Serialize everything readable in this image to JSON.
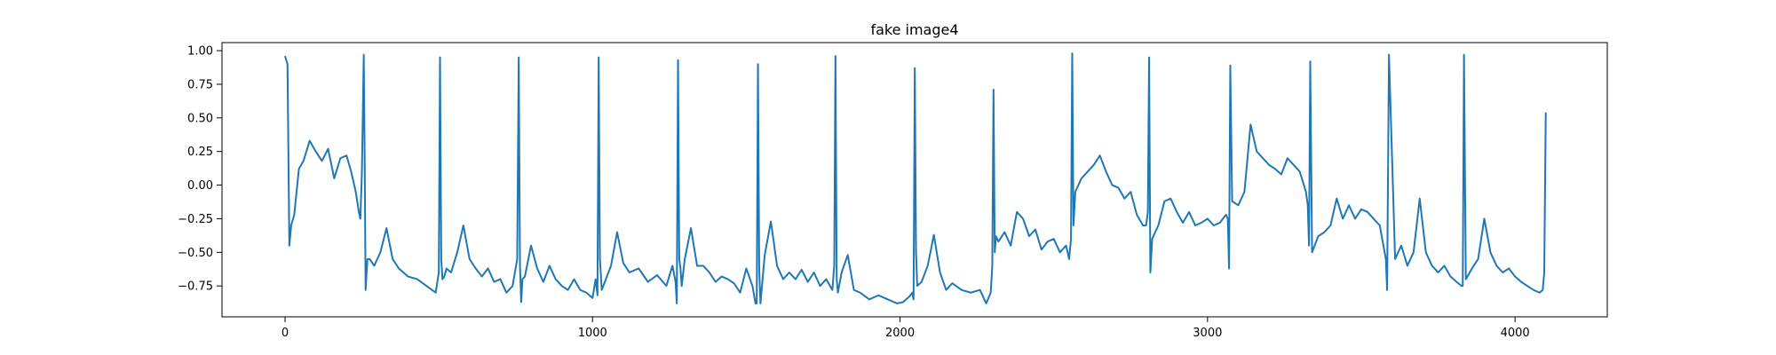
{
  "chart_data": {
    "type": "line",
    "title": "fake image4",
    "xlabel": "",
    "ylabel": "",
    "xlim": [
      -205,
      4300
    ],
    "ylim": [
      -0.98,
      1.06
    ],
    "xticks": [
      0,
      1000,
      2000,
      3000,
      4000
    ],
    "xtick_labels": [
      "0",
      "1000",
      "2000",
      "3000",
      "4000"
    ],
    "yticks": [
      -0.75,
      -0.5,
      -0.25,
      0.0,
      0.25,
      0.5,
      0.75,
      1.0
    ],
    "ytick_labels": [
      "−0.75",
      "−0.50",
      "−0.25",
      "0.00",
      "0.25",
      "0.50",
      "0.75",
      "1.00"
    ],
    "grid": false,
    "legend": "none",
    "series": [
      {
        "color": "#1f77b4",
        "x": [
          0,
          8,
          14,
          20,
          30,
          45,
          60,
          80,
          100,
          120,
          140,
          160,
          180,
          200,
          215,
          230,
          240,
          245,
          250,
          256,
          259,
          262,
          268,
          275,
          290,
          310,
          330,
          350,
          370,
          400,
          430,
          460,
          490,
          500,
          504,
          508,
          512,
          518,
          525,
          540,
          560,
          580,
          600,
          620,
          640,
          660,
          680,
          700,
          720,
          740,
          755,
          760,
          764,
          768,
          772,
          780,
          800,
          820,
          840,
          860,
          880,
          900,
          920,
          940,
          960,
          980,
          1000,
          1010,
          1016,
          1020,
          1024,
          1030,
          1040,
          1060,
          1080,
          1100,
          1120,
          1150,
          1180,
          1210,
          1240,
          1260,
          1270,
          1274,
          1278,
          1282,
          1286,
          1290,
          1300,
          1320,
          1340,
          1360,
          1380,
          1400,
          1420,
          1440,
          1460,
          1480,
          1500,
          1520,
          1530,
          1534,
          1538,
          1542,
          1546,
          1560,
          1580,
          1600,
          1620,
          1640,
          1660,
          1680,
          1700,
          1720,
          1740,
          1760,
          1780,
          1786,
          1790,
          1794,
          1798,
          1810,
          1830,
          1850,
          1870,
          1900,
          1930,
          1960,
          1990,
          2010,
          2030,
          2040,
          2044,
          2048,
          2052,
          2056,
          2070,
          2090,
          2110,
          2130,
          2150,
          2170,
          2200,
          2230,
          2260,
          2280,
          2295,
          2300,
          2304,
          2308,
          2312,
          2320,
          2340,
          2360,
          2380,
          2400,
          2420,
          2440,
          2460,
          2480,
          2500,
          2520,
          2540,
          2550,
          2556,
          2560,
          2564,
          2570,
          2590,
          2610,
          2630,
          2650,
          2670,
          2690,
          2710,
          2730,
          2750,
          2770,
          2790,
          2800,
          2806,
          2810,
          2814,
          2820,
          2840,
          2860,
          2880,
          2900,
          2920,
          2940,
          2960,
          2980,
          3000,
          3020,
          3040,
          3060,
          3066,
          3070,
          3074,
          3080,
          3100,
          3120,
          3140,
          3160,
          3180,
          3200,
          3220,
          3240,
          3260,
          3280,
          3300,
          3320,
          3326,
          3330,
          3334,
          3340,
          3360,
          3380,
          3400,
          3420,
          3440,
          3460,
          3480,
          3500,
          3520,
          3540,
          3560,
          3576,
          3580,
          3584,
          3590,
          3610,
          3630,
          3650,
          3670,
          3690,
          3710,
          3730,
          3750,
          3770,
          3790,
          3810,
          3826,
          3830,
          3834,
          3840,
          3860,
          3880,
          3900,
          3920,
          3940,
          3960,
          3980,
          4000,
          4020,
          4040,
          4060,
          4080,
          4090,
          4095,
          4100
        ],
        "values": [
          0.96,
          0.9,
          -0.45,
          -0.3,
          -0.22,
          0.12,
          0.18,
          0.33,
          0.25,
          0.18,
          0.27,
          0.05,
          0.2,
          0.22,
          0.1,
          -0.05,
          -0.2,
          -0.25,
          0.1,
          0.97,
          0.2,
          -0.78,
          -0.55,
          -0.55,
          -0.6,
          -0.5,
          -0.32,
          -0.55,
          -0.62,
          -0.68,
          -0.7,
          -0.75,
          -0.8,
          -0.65,
          0.95,
          -0.55,
          -0.7,
          -0.68,
          -0.62,
          -0.65,
          -0.5,
          -0.3,
          -0.55,
          -0.62,
          -0.68,
          -0.62,
          -0.72,
          -0.7,
          -0.8,
          -0.75,
          -0.55,
          0.95,
          -0.6,
          -0.87,
          -0.7,
          -0.68,
          -0.45,
          -0.62,
          -0.72,
          -0.6,
          -0.7,
          -0.75,
          -0.78,
          -0.7,
          -0.78,
          -0.8,
          -0.84,
          -0.7,
          -0.82,
          0.95,
          -0.55,
          -0.78,
          -0.72,
          -0.6,
          -0.35,
          -0.58,
          -0.65,
          -0.62,
          -0.72,
          -0.67,
          -0.75,
          -0.6,
          -0.72,
          -0.88,
          0.93,
          -0.55,
          -0.62,
          -0.75,
          -0.55,
          -0.32,
          -0.6,
          -0.6,
          -0.65,
          -0.72,
          -0.68,
          -0.7,
          -0.73,
          -0.8,
          -0.62,
          -0.75,
          -0.88,
          -0.88,
          0.9,
          -0.62,
          -0.88,
          -0.52,
          -0.27,
          -0.6,
          -0.7,
          -0.65,
          -0.7,
          -0.63,
          -0.72,
          -0.65,
          -0.75,
          -0.7,
          -0.78,
          -0.6,
          0.96,
          -0.7,
          -0.8,
          -0.65,
          -0.52,
          -0.78,
          -0.8,
          -0.85,
          -0.82,
          -0.85,
          -0.88,
          -0.87,
          -0.83,
          -0.8,
          -0.85,
          0.87,
          -0.5,
          -0.75,
          -0.72,
          -0.6,
          -0.37,
          -0.65,
          -0.78,
          -0.73,
          -0.78,
          -0.8,
          -0.78,
          -0.88,
          -0.8,
          -0.6,
          0.71,
          -0.5,
          -0.38,
          -0.42,
          -0.35,
          -0.45,
          -0.2,
          -0.25,
          -0.38,
          -0.33,
          -0.48,
          -0.42,
          -0.4,
          -0.5,
          -0.45,
          -0.55,
          -0.4,
          0.98,
          -0.3,
          -0.05,
          0.05,
          0.1,
          0.15,
          0.22,
          0.1,
          0.0,
          -0.02,
          -0.1,
          -0.05,
          -0.22,
          -0.3,
          -0.3,
          -0.2,
          0.95,
          -0.65,
          -0.4,
          -0.3,
          -0.12,
          -0.1,
          -0.2,
          -0.28,
          -0.2,
          -0.3,
          -0.28,
          -0.25,
          -0.3,
          -0.28,
          -0.22,
          -0.25,
          -0.62,
          0.89,
          -0.12,
          -0.15,
          -0.05,
          0.45,
          0.25,
          0.2,
          0.15,
          0.12,
          0.08,
          0.2,
          0.15,
          0.1,
          -0.05,
          -0.15,
          -0.45,
          0.92,
          -0.5,
          -0.38,
          -0.35,
          -0.3,
          -0.1,
          -0.25,
          -0.15,
          -0.25,
          -0.18,
          -0.2,
          -0.25,
          -0.3,
          -0.5,
          -0.55,
          -0.78,
          0.97,
          -0.55,
          -0.45,
          -0.6,
          -0.5,
          -0.1,
          -0.5,
          -0.6,
          -0.65,
          -0.6,
          -0.68,
          -0.72,
          -0.75,
          -0.75,
          0.97,
          -0.7,
          -0.62,
          -0.55,
          -0.25,
          -0.5,
          -0.6,
          -0.65,
          -0.62,
          -0.68,
          -0.72,
          -0.75,
          -0.78,
          -0.8,
          -0.78,
          -0.65,
          0.54
        ]
      }
    ]
  }
}
